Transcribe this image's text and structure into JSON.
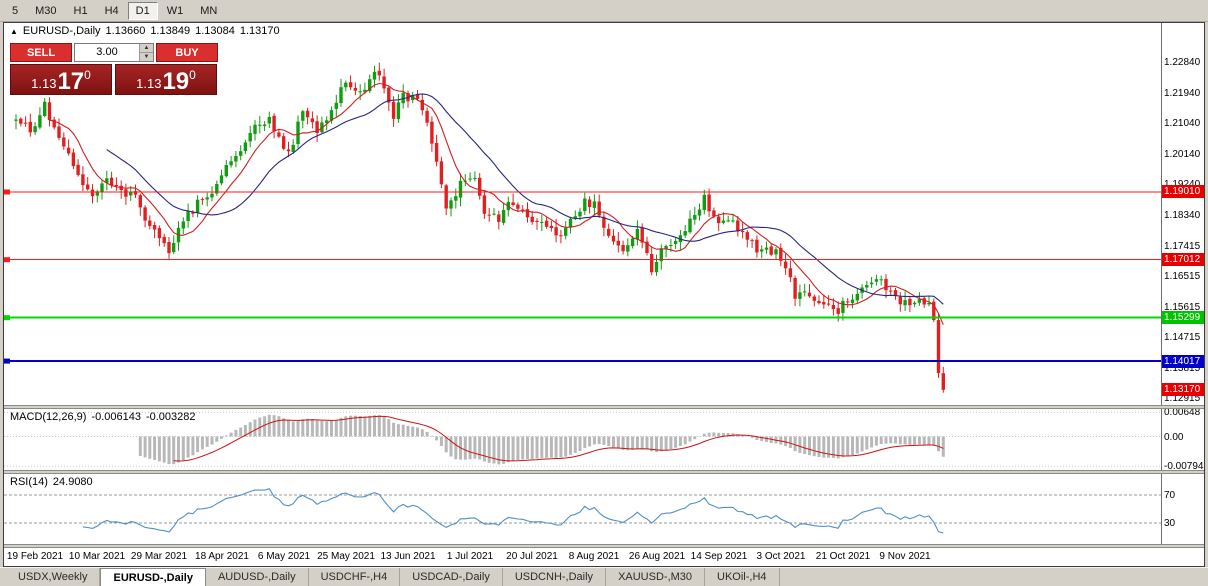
{
  "toolbar": {
    "active": "D1",
    "buttons": [
      {
        "label": "5"
      },
      {
        "label": "M30"
      },
      {
        "label": "H1"
      },
      {
        "label": "H4"
      },
      {
        "label": "D1"
      },
      {
        "label": "W1"
      },
      {
        "label": "MN"
      }
    ]
  },
  "chart_header": {
    "icon": "▲",
    "symbol": "EURUSD-,Daily",
    "open": "1.13660",
    "high": "1.13849",
    "low": "1.13084",
    "close": "1.13170"
  },
  "trade_panel": {
    "sell_label": "SELL",
    "buy_label": "BUY",
    "volume": "3.00",
    "sell_price": {
      "base": "1.13",
      "big": "17",
      "sup": "0"
    },
    "buy_price": {
      "base": "1.13",
      "big": "19",
      "sup": "0"
    }
  },
  "macd_panel": {
    "title": "MACD(12,26,9)",
    "main_value": "-0.006143",
    "signal_value": "-0.003282",
    "axis_labels": [
      {
        "value": 0.00648,
        "text": "0.00648"
      },
      {
        "value": 0,
        "text": "0.00"
      },
      {
        "value": -0.00794,
        "text": "-0.00794"
      }
    ]
  },
  "rsi_panel": {
    "title": "RSI(14)",
    "value": "24.9080",
    "axis_labels": [
      {
        "value": 70,
        "text": "70"
      },
      {
        "value": 30,
        "text": "30"
      }
    ]
  },
  "tabs": [
    {
      "label": "USDX,Weekly",
      "active": false
    },
    {
      "label": "EURUSD-,Daily",
      "active": true
    },
    {
      "label": "AUDUSD-,Daily",
      "active": false
    },
    {
      "label": "USDCHF-,H4",
      "active": false
    },
    {
      "label": "USDCAD-,Daily",
      "active": false
    },
    {
      "label": "USDCNH-,Daily",
      "active": false
    },
    {
      "label": "XAUUSD-,M30",
      "active": false
    },
    {
      "label": "UKOil-,H4",
      "active": false
    }
  ],
  "colors": {
    "candle_up": "#119c11",
    "candle_down": "#e02020",
    "ma_fast": "#cf2020",
    "ma_slow": "#27277f",
    "macd_hist": "#b8b8b8",
    "macd_signal": "#c81414",
    "rsi_line": "#4d8fce",
    "button_red": "#d92f2f",
    "tile_red": "#9a1a1a",
    "tag_red": "#e80000",
    "tag_green": "#00c400",
    "tag_blue": "#0000c8"
  },
  "chart_data": {
    "type": "candlestick",
    "symbol": "EURUSD-",
    "timeframe": "Daily",
    "current_ohlc": {
      "open": 1.1366,
      "high": 1.13849,
      "low": 1.13084,
      "close": 1.1317
    },
    "price_range": [
      1.1272,
      1.24
    ],
    "num_candles": 195,
    "first_label_index": 4,
    "label_step": 13,
    "y_ticks": [
      {
        "value": 1.2284,
        "text": "1.22840"
      },
      {
        "value": 1.2194,
        "text": "1.21940"
      },
      {
        "value": 1.2104,
        "text": "1.21040"
      },
      {
        "value": 1.2014,
        "text": "1.20140"
      },
      {
        "value": 1.1924,
        "text": "1.19240"
      },
      {
        "value": 1.1834,
        "text": "1.18340"
      },
      {
        "value": 1.17415,
        "text": "1.17415"
      },
      {
        "value": 1.16515,
        "text": "1.16515"
      },
      {
        "value": 1.15615,
        "text": "1.15615"
      },
      {
        "value": 1.14715,
        "text": "1.14715"
      },
      {
        "value": 1.13815,
        "text": "1.13815"
      },
      {
        "value": 1.12915,
        "text": "1.12915"
      }
    ],
    "x_tick_labels": [
      "19 Feb 2021",
      "10 Mar 2021",
      "29 Mar 2021",
      "18 Apr 2021",
      "6 May 2021",
      "25 May 2021",
      "13 Jun 2021",
      "1 Jul 2021",
      "20 Jul 2021",
      "8 Aug 2021",
      "26 Aug 2021",
      "14 Sep 2021",
      "3 Oct 2021",
      "21 Oct 2021",
      "9 Nov 2021"
    ],
    "horizontal_lines": [
      {
        "price": 1.1901,
        "label": "1.19010",
        "color": "#ff1a1a",
        "width": 1
      },
      {
        "price": 1.17012,
        "label": "1.17012",
        "color": "#ff1a1a",
        "width": 1
      },
      {
        "price": 1.15299,
        "label": "1.15299",
        "color": "#00d800",
        "width": 2
      },
      {
        "price": 1.14017,
        "label": "1.14017",
        "color": "#0000cc",
        "width": 2
      }
    ],
    "current_price_tag": {
      "price": 1.1317,
      "label": "1.13170",
      "color": "#e80000"
    },
    "price_waypoints": [
      [
        0,
        1.2125
      ],
      [
        3,
        1.2085
      ],
      [
        6,
        1.2155
      ],
      [
        9,
        1.207
      ],
      [
        12,
        1.1985
      ],
      [
        14,
        1.1915
      ],
      [
        17,
        1.1895
      ],
      [
        19,
        1.195
      ],
      [
        22,
        1.1905
      ],
      [
        25,
        1.189
      ],
      [
        27,
        1.1815
      ],
      [
        30,
        1.177
      ],
      [
        32,
        1.1725
      ],
      [
        35,
        1.181
      ],
      [
        38,
        1.187
      ],
      [
        41,
        1.1905
      ],
      [
        44,
        1.1985
      ],
      [
        47,
        1.2035
      ],
      [
        50,
        1.209
      ],
      [
        53,
        1.2125
      ],
      [
        55,
        1.2055
      ],
      [
        57,
        1.2015
      ],
      [
        60,
        1.2135
      ],
      [
        63,
        1.208
      ],
      [
        66,
        1.215
      ],
      [
        69,
        1.2225
      ],
      [
        72,
        1.2195
      ],
      [
        75,
        1.2255
      ],
      [
        77,
        1.2215
      ],
      [
        79,
        1.2125
      ],
      [
        81,
        1.2185
      ],
      [
        84,
        1.2175
      ],
      [
        86,
        1.211
      ],
      [
        88,
        1.199
      ],
      [
        90,
        1.1855
      ],
      [
        93,
        1.192
      ],
      [
        96,
        1.193
      ],
      [
        98,
        1.1845
      ],
      [
        101,
        1.1825
      ],
      [
        104,
        1.1875
      ],
      [
        107,
        1.183
      ],
      [
        110,
        1.18
      ],
      [
        113,
        1.177
      ],
      [
        116,
        1.182
      ],
      [
        119,
        1.187
      ],
      [
        121,
        1.186
      ],
      [
        124,
        1.176
      ],
      [
        127,
        1.1735
      ],
      [
        130,
        1.178
      ],
      [
        133,
        1.167
      ],
      [
        135,
        1.1745
      ],
      [
        138,
        1.1755
      ],
      [
        141,
        1.1815
      ],
      [
        144,
        1.188
      ],
      [
        147,
        1.1815
      ],
      [
        150,
        1.1805
      ],
      [
        153,
        1.176
      ],
      [
        156,
        1.1725
      ],
      [
        159,
        1.172
      ],
      [
        161,
        1.1685
      ],
      [
        163,
        1.16
      ],
      [
        166,
        1.159
      ],
      [
        169,
        1.156
      ],
      [
        172,
        1.1555
      ],
      [
        175,
        1.1595
      ],
      [
        178,
        1.163
      ],
      [
        181,
        1.1645
      ],
      [
        183,
        1.1605
      ],
      [
        185,
        1.156
      ],
      [
        187,
        1.158
      ],
      [
        189,
        1.157
      ],
      [
        191,
        1.156
      ],
      [
        192,
        1.153
      ],
      [
        193,
        1.1366
      ],
      [
        194,
        1.1317
      ]
    ],
    "indicators": {
      "ma_fast_period": 8,
      "ma_slow_period": 20,
      "macd": {
        "fast": 12,
        "slow": 26,
        "signal": 9,
        "main": -0.006143,
        "signal_value": -0.003282,
        "scale": [
          -0.009,
          0.0074
        ]
      },
      "rsi": {
        "period": 14,
        "value": 24.908,
        "levels": [
          70,
          30
        ]
      }
    }
  }
}
